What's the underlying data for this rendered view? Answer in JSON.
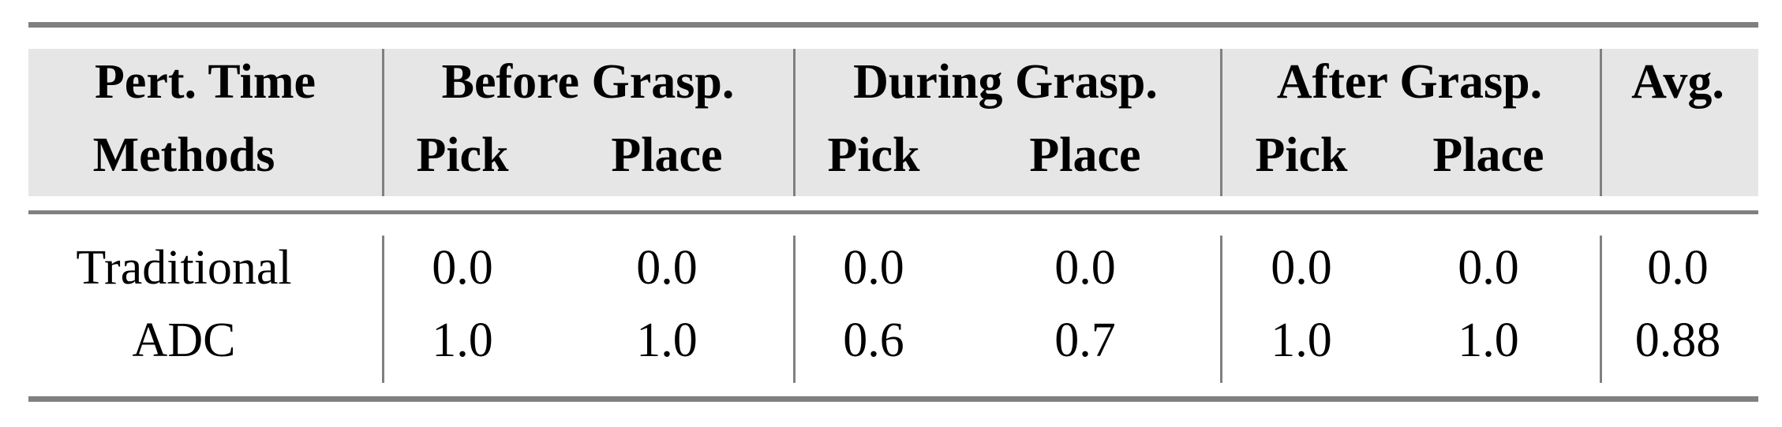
{
  "table": {
    "header_row1": {
      "corner": "Pert. Time",
      "groups": [
        "Before Grasp.",
        "During Grasp.",
        "After Grasp."
      ],
      "avg": "Avg."
    },
    "header_row2": {
      "corner": "Methods",
      "subcolumns": [
        "Pick",
        "Place",
        "Pick",
        "Place",
        "Pick",
        "Place"
      ]
    },
    "rows": [
      {
        "method": "Traditional",
        "values": [
          "0.0",
          "0.0",
          "0.0",
          "0.0",
          "0.0",
          "0.0"
        ],
        "avg": "0.0"
      },
      {
        "method": "ADC",
        "values": [
          "1.0",
          "1.0",
          "0.6",
          "0.7",
          "1.0",
          "1.0"
        ],
        "avg": "0.88"
      }
    ]
  }
}
